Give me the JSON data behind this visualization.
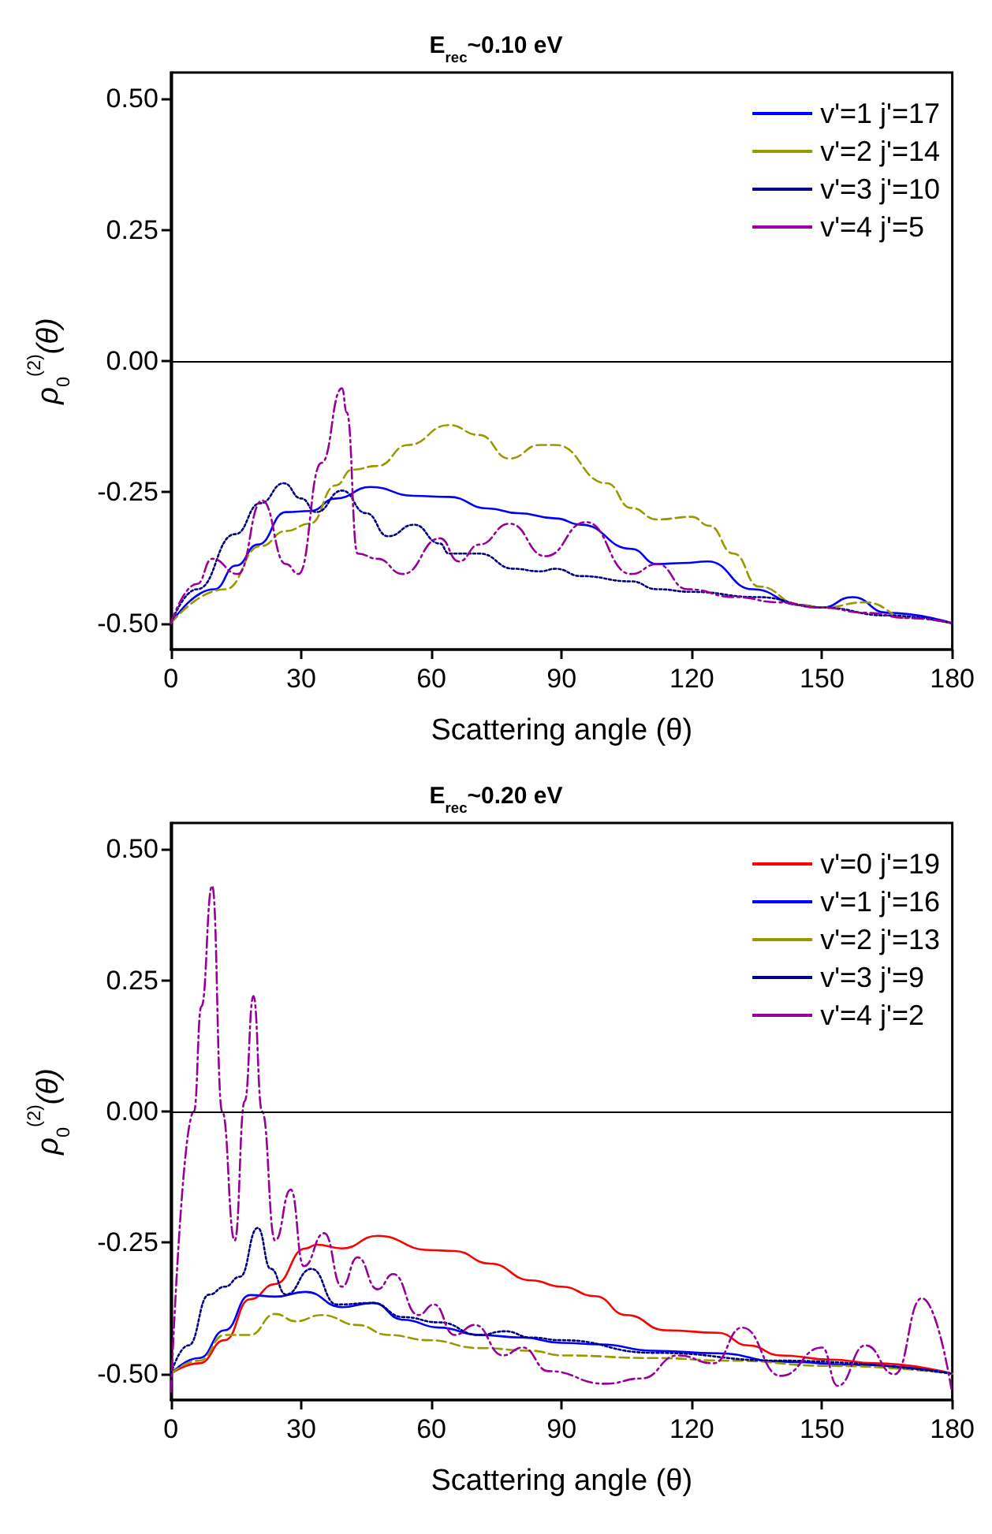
{
  "chart_data": [
    {
      "type": "line",
      "title": "E$_{rec}$~0.10 eV",
      "xlabel": "Scattering angle (θ)",
      "ylabel": "ρ$_{0}$$^{(2)}$(θ)",
      "xlim": [
        0,
        180
      ],
      "xticks": [
        0,
        30,
        60,
        90,
        120,
        150,
        180
      ],
      "ylim": [
        -0.55,
        0.55
      ],
      "yticks": [
        {
          "value": -0.5,
          "label": "-0.50"
        },
        {
          "value": -0.25,
          "label": "-0.25"
        },
        {
          "value": 0,
          "label": "0.00"
        },
        {
          "value": 0.25,
          "label": "0.25"
        },
        {
          "value": 0.5,
          "label": "0.50"
        }
      ],
      "legend": "top right",
      "grid": false,
      "ref_lines": [
        {
          "axis": "y",
          "value": 0,
          "color": "#000000"
        }
      ],
      "series": [
        {
          "name": "v'=1 j'=17",
          "color": "#0000ff",
          "line_style": "solid",
          "x": [
            0,
            10,
            15,
            20,
            26.5,
            32,
            38,
            46,
            56,
            64,
            73,
            80,
            88.6,
            94.5,
            106,
            112,
            118,
            123.7,
            134,
            145,
            150,
            157,
            165,
            180
          ],
          "values": [
            -0.5,
            -0.435,
            -0.39,
            -0.35,
            -0.288,
            -0.286,
            -0.262,
            -0.24,
            -0.257,
            -0.259,
            -0.281,
            -0.29,
            -0.3,
            -0.312,
            -0.358,
            -0.387,
            -0.385,
            -0.382,
            -0.435,
            -0.465,
            -0.47,
            -0.45,
            -0.48,
            -0.5
          ]
        },
        {
          "name": "v'=2 j'=14",
          "color": "#999900",
          "line_style": "dashed",
          "x": [
            0,
            12.5,
            20.6,
            26.5,
            32,
            38,
            41.7,
            47.6,
            54.6,
            64,
            71,
            78,
            85,
            88.6,
            100.4,
            106,
            112,
            120,
            124,
            129.6,
            135.5,
            145,
            150,
            160,
            170,
            180
          ],
          "values": [
            -0.5,
            -0.435,
            -0.353,
            -0.324,
            -0.31,
            -0.237,
            -0.207,
            -0.2,
            -0.16,
            -0.122,
            -0.141,
            -0.186,
            -0.16,
            -0.16,
            -0.233,
            -0.28,
            -0.302,
            -0.297,
            -0.314,
            -0.367,
            -0.43,
            -0.465,
            -0.47,
            -0.46,
            -0.49,
            -0.5
          ]
        },
        {
          "name": "v'=3 j'=10",
          "color": "#000080",
          "line_style": "dotted",
          "x": [
            0,
            6,
            14.8,
            20.6,
            26,
            30,
            33.5,
            39.4,
            45,
            50,
            56,
            62,
            64,
            71,
            79,
            85,
            88.6,
            94.5,
            106,
            112,
            120,
            135,
            150,
            165,
            180
          ],
          "values": [
            -0.5,
            -0.435,
            -0.33,
            -0.271,
            -0.233,
            -0.262,
            -0.288,
            -0.247,
            -0.29,
            -0.334,
            -0.312,
            -0.348,
            -0.367,
            -0.367,
            -0.396,
            -0.401,
            -0.396,
            -0.41,
            -0.42,
            -0.435,
            -0.44,
            -0.45,
            -0.47,
            -0.485,
            -0.5
          ]
        },
        {
          "name": "v'=4 j'=5",
          "color": "#990099",
          "line_style": "dashdot",
          "x": [
            0,
            6,
            9.5,
            15.4,
            21,
            26.5,
            29.4,
            34.7,
            39.4,
            40.5,
            43,
            47.6,
            53.4,
            62,
            66.3,
            71,
            78,
            86.3,
            95.6,
            106,
            112,
            119,
            130,
            140,
            150,
            160,
            170,
            180
          ],
          "values": [
            -0.5,
            -0.425,
            -0.377,
            -0.406,
            -0.266,
            -0.387,
            -0.406,
            -0.194,
            -0.052,
            -0.098,
            -0.367,
            -0.377,
            -0.406,
            -0.338,
            -0.382,
            -0.35,
            -0.31,
            -0.372,
            -0.307,
            -0.406,
            -0.387,
            -0.435,
            -0.45,
            -0.46,
            -0.47,
            -0.48,
            -0.49,
            -0.5
          ]
        }
      ]
    },
    {
      "type": "line",
      "title": "E$_{rec}$~0.20 eV",
      "xlabel": "Scattering angle (θ)",
      "ylabel": "ρ$_{0}$$^{(2)}$(θ)",
      "xlim": [
        0,
        180
      ],
      "xticks": [
        0,
        30,
        60,
        90,
        120,
        150,
        180
      ],
      "ylim": [
        -0.55,
        0.55
      ],
      "yticks": [
        {
          "value": -0.5,
          "label": "-0.50"
        },
        {
          "value": -0.25,
          "label": "-0.25"
        },
        {
          "value": 0,
          "label": "0.00"
        },
        {
          "value": 0.25,
          "label": "0.25"
        },
        {
          "value": 0.5,
          "label": "0.50"
        }
      ],
      "legend": "top right",
      "grid": false,
      "ref_lines": [
        {
          "axis": "y",
          "value": 0,
          "color": "#000000"
        }
      ],
      "series": [
        {
          "name": "v'=0 j'=19",
          "color": "#ff0000",
          "line_style": "solid",
          "x": [
            0,
            6.5,
            12.4,
            18.2,
            24,
            31,
            33.5,
            39.4,
            47.6,
            59.4,
            65.3,
            73.5,
            83,
            90,
            97.7,
            104.9,
            114,
            126,
            133,
            140.5,
            152,
            162,
            180
          ],
          "values": [
            -0.5,
            -0.48,
            -0.436,
            -0.358,
            -0.329,
            -0.261,
            -0.254,
            -0.261,
            -0.237,
            -0.264,
            -0.266,
            -0.29,
            -0.322,
            -0.334,
            -0.352,
            -0.388,
            -0.417,
            -0.422,
            -0.446,
            -0.465,
            -0.473,
            -0.48,
            -0.5
          ]
        },
        {
          "name": "v'=1 j'=16",
          "color": "#0000ff",
          "line_style": "solid",
          "x": [
            0,
            6.5,
            12.4,
            18.2,
            24,
            31,
            39.4,
            46.5,
            53.5,
            61.8,
            71,
            81,
            90,
            99,
            111,
            126,
            140.5,
            158,
            180
          ],
          "values": [
            -0.5,
            -0.47,
            -0.417,
            -0.35,
            -0.353,
            -0.344,
            -0.373,
            -0.365,
            -0.397,
            -0.412,
            -0.426,
            -0.431,
            -0.441,
            -0.444,
            -0.456,
            -0.461,
            -0.477,
            -0.483,
            -0.5
          ]
        },
        {
          "name": "v'=2 j'=13",
          "color": "#999900",
          "line_style": "dashed",
          "x": [
            0,
            6.5,
            12.4,
            18.2,
            24,
            28.8,
            34.7,
            43,
            50,
            59.4,
            71,
            83,
            90,
            111,
            128.6,
            152,
            180
          ],
          "values": [
            -0.5,
            -0.475,
            -0.426,
            -0.426,
            -0.386,
            -0.4,
            -0.388,
            -0.407,
            -0.426,
            -0.436,
            -0.451,
            -0.456,
            -0.465,
            -0.47,
            -0.475,
            -0.485,
            -0.5
          ]
        },
        {
          "name": "v'=3 j'=9",
          "color": "#000080",
          "line_style": "dotted",
          "x": [
            0,
            4,
            8.8,
            12.4,
            15.9,
            20,
            23,
            26.5,
            32.4,
            38.2,
            46.5,
            53.5,
            61.8,
            71,
            77,
            83,
            90,
            111,
            140.5,
            180
          ],
          "values": [
            -0.5,
            -0.446,
            -0.349,
            -0.334,
            -0.315,
            -0.222,
            -0.3,
            -0.349,
            -0.3,
            -0.368,
            -0.365,
            -0.392,
            -0.402,
            -0.426,
            -0.419,
            -0.431,
            -0.436,
            -0.46,
            -0.475,
            -0.5
          ]
        },
        {
          "name": "v'=4 j'=2",
          "color": "#990099",
          "line_style": "dashdot",
          "x": [
            0,
            5.3,
            7,
            9.5,
            11.8,
            14.7,
            17,
            19,
            21,
            24,
            27.6,
            30.6,
            35.3,
            39.4,
            43,
            47.6,
            51.2,
            57,
            60.6,
            65.3,
            70,
            76.5,
            81,
            87,
            100,
            108.4,
            116.8,
            125,
            131.6,
            140.5,
            150,
            153.6,
            160,
            166.7,
            173,
            179.8
          ],
          "values": [
            -0.534,
            0,
            0.2,
            0.43,
            0,
            -0.246,
            0.02,
            0.22,
            0,
            -0.246,
            -0.149,
            -0.295,
            -0.232,
            -0.334,
            -0.278,
            -0.339,
            -0.31,
            -0.388,
            -0.368,
            -0.426,
            -0.407,
            -0.465,
            -0.45,
            -0.495,
            -0.519,
            -0.509,
            -0.465,
            -0.48,
            -0.412,
            -0.504,
            -0.45,
            -0.523,
            -0.446,
            -0.501,
            -0.356,
            -0.529
          ]
        }
      ]
    }
  ]
}
